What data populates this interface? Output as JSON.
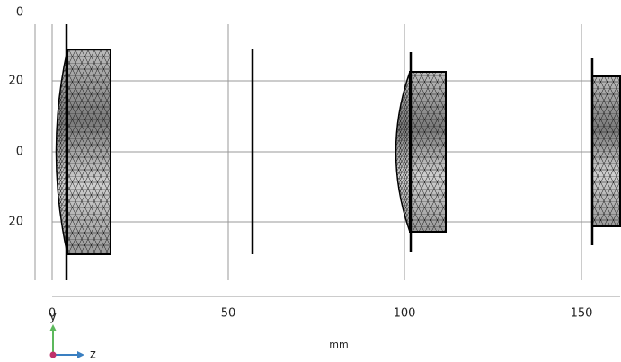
{
  "view": {
    "top_label": "0",
    "y_ticks": [
      "20",
      "0",
      "20"
    ],
    "x_ticks": [
      "0",
      "50",
      "100",
      "150"
    ],
    "x_unit": "mm",
    "triad": {
      "y": "y",
      "z": "z"
    }
  }
}
